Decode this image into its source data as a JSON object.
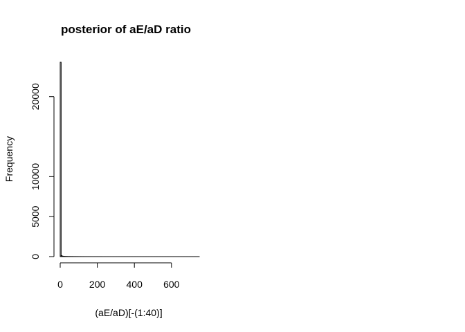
{
  "chart_data": {
    "type": "bar",
    "title": "posterior of aE/aD ratio",
    "xlabel": "(aE/aD)[-(1:40)]",
    "ylabel": "Frequency",
    "bin_width": 5,
    "x_range": [
      0,
      750
    ],
    "xlim": [
      0,
      750
    ],
    "ylim": [
      0,
      24300
    ],
    "x_ticks": [
      "0",
      "200",
      "400",
      "600"
    ],
    "y_ticks": [
      "0",
      "5000",
      "10000",
      "20000"
    ],
    "values": [
      24300,
      120,
      60,
      40,
      30,
      25,
      20,
      18,
      15,
      14,
      12,
      11,
      10,
      9,
      8,
      8,
      7,
      7,
      6,
      6,
      5,
      5,
      5,
      4,
      4,
      4,
      4,
      3,
      3,
      3,
      3,
      3,
      3,
      2,
      2,
      2,
      2,
      2,
      2,
      2,
      2,
      2,
      2,
      2,
      2,
      1,
      1,
      1,
      1,
      1,
      1,
      1,
      1,
      1,
      1,
      1,
      1,
      1,
      1,
      1,
      1,
      1,
      1,
      1,
      1,
      1,
      1,
      1,
      1,
      1,
      1,
      1,
      1,
      1,
      1,
      1,
      1,
      1,
      1,
      1,
      1,
      1,
      1,
      1,
      1,
      1,
      1,
      1,
      1,
      1,
      1,
      1,
      1,
      1,
      1,
      1,
      1,
      1,
      1,
      1,
      1,
      1,
      1,
      1,
      1,
      1,
      1,
      1,
      1,
      1,
      1,
      1,
      1,
      1,
      1,
      1,
      1,
      1,
      1,
      1,
      1,
      1,
      1,
      1,
      1,
      1,
      1,
      1,
      1,
      1,
      1,
      1,
      1,
      1,
      1,
      1,
      1,
      1,
      1,
      1,
      1,
      1,
      1,
      1,
      1,
      1,
      1,
      1,
      1,
      1
    ],
    "grid": false
  }
}
